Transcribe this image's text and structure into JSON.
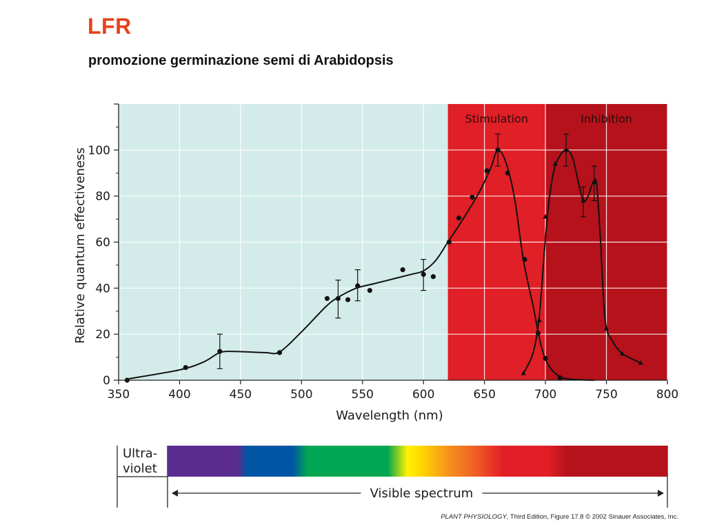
{
  "slide": {
    "title": "LFR",
    "subtitle": "promozione germinazione semi di Arabidopsis"
  },
  "chart_data": {
    "type": "line",
    "xlabel": "Wavelength (nm)",
    "ylabel": "Relative quantum effectiveness",
    "xlim": [
      350,
      800
    ],
    "ylim": [
      0,
      120
    ],
    "x_ticks": [
      350,
      400,
      450,
      500,
      550,
      600,
      650,
      700,
      750,
      800
    ],
    "y_ticks": [
      0,
      20,
      40,
      60,
      80,
      100
    ],
    "grid": true,
    "regions": [
      {
        "label": "",
        "from": 350,
        "to": 620,
        "color": "#d3ecea"
      },
      {
        "label": "Stimulation",
        "from": 620,
        "to": 700,
        "color": "#e01f26"
      },
      {
        "label": "Inhibition",
        "from": 700,
        "to": 800,
        "color": "#b5121b"
      }
    ],
    "series": [
      {
        "marker": "circle",
        "curve": [
          [
            357,
            0.5
          ],
          [
            400,
            4.5
          ],
          [
            420,
            8
          ],
          [
            433,
            12
          ],
          [
            445,
            12.5
          ],
          [
            470,
            12
          ],
          [
            482,
            12.3
          ],
          [
            500,
            21
          ],
          [
            520,
            32
          ],
          [
            530,
            36
          ],
          [
            545,
            40
          ],
          [
            560,
            42
          ],
          [
            575,
            44
          ],
          [
            590,
            46
          ],
          [
            600,
            47.5
          ],
          [
            610,
            52
          ],
          [
            620,
            60
          ],
          [
            630,
            68
          ],
          [
            645,
            81
          ],
          [
            655,
            92
          ],
          [
            661,
            100
          ],
          [
            668,
            94
          ],
          [
            675,
            78
          ],
          [
            682,
            52
          ],
          [
            690,
            32
          ],
          [
            696,
            16
          ],
          [
            702,
            7
          ],
          [
            712,
            1.5
          ],
          [
            725,
            0.3
          ],
          [
            740,
            0
          ]
        ],
        "points": [
          {
            "x": 357,
            "y": 0
          },
          {
            "x": 405,
            "y": 5.5
          },
          {
            "x": 433,
            "y": 12.5,
            "err": [
              5,
              20
            ]
          },
          {
            "x": 482,
            "y": 12
          },
          {
            "x": 521,
            "y": 35.5
          },
          {
            "x": 530,
            "y": 35.5,
            "err": [
              27,
              43.5
            ]
          },
          {
            "x": 538,
            "y": 35
          },
          {
            "x": 546,
            "y": 41,
            "err": [
              34.5,
              48
            ]
          },
          {
            "x": 556,
            "y": 39
          },
          {
            "x": 583,
            "y": 48
          },
          {
            "x": 600,
            "y": 46,
            "err": [
              39,
              52.5
            ]
          },
          {
            "x": 608,
            "y": 45
          },
          {
            "x": 621,
            "y": 60
          },
          {
            "x": 629,
            "y": 70.5
          },
          {
            "x": 640,
            "y": 79.5
          },
          {
            "x": 652,
            "y": 91
          },
          {
            "x": 661,
            "y": 100,
            "err": [
              93,
              107
            ]
          },
          {
            "x": 669,
            "y": 90
          },
          {
            "x": 683,
            "y": 52.5
          },
          {
            "x": 694,
            "y": 20.5
          },
          {
            "x": 700,
            "y": 9.5
          },
          {
            "x": 712,
            "y": 1
          }
        ]
      },
      {
        "marker": "triangle",
        "curve": [
          [
            682,
            3
          ],
          [
            690,
            12
          ],
          [
            695,
            28
          ],
          [
            699,
            55
          ],
          [
            703,
            78
          ],
          [
            708,
            93
          ],
          [
            716,
            100
          ],
          [
            722,
            97
          ],
          [
            727,
            86
          ],
          [
            731,
            78
          ],
          [
            735,
            80
          ],
          [
            739,
            86
          ],
          [
            742,
            85
          ],
          [
            745,
            62
          ],
          [
            749,
            26
          ],
          [
            755,
            17
          ],
          [
            762,
            12
          ],
          [
            770,
            9.5
          ],
          [
            778,
            7.5
          ]
        ],
        "points": [
          {
            "x": 682,
            "y": 3
          },
          {
            "x": 695,
            "y": 26
          },
          {
            "x": 700,
            "y": 71
          },
          {
            "x": 708,
            "y": 94
          },
          {
            "x": 717,
            "y": 100,
            "err": [
              93,
              107
            ]
          },
          {
            "x": 731,
            "y": 78,
            "err": [
              71,
              84
            ]
          },
          {
            "x": 740,
            "y": 86,
            "err": [
              78,
              93
            ]
          },
          {
            "x": 750,
            "y": 22.5
          },
          {
            "x": 763,
            "y": 11.5
          },
          {
            "x": 778,
            "y": 7.5
          }
        ]
      }
    ]
  },
  "spectrum": {
    "uv_label": [
      "Ultra-",
      "violet"
    ],
    "visible_label": "Visible spectrum",
    "colors": [
      "#5b2c8f",
      "#0055a5",
      "#00a651",
      "#fff200",
      "#f7941d",
      "#e21f26",
      "#b5121b"
    ]
  },
  "credit": {
    "book": "PLANT PHYSIOLOGY",
    "rest": ", Third Edition, Figure 17.8  © 2002 Sinauer Associates, Inc."
  }
}
